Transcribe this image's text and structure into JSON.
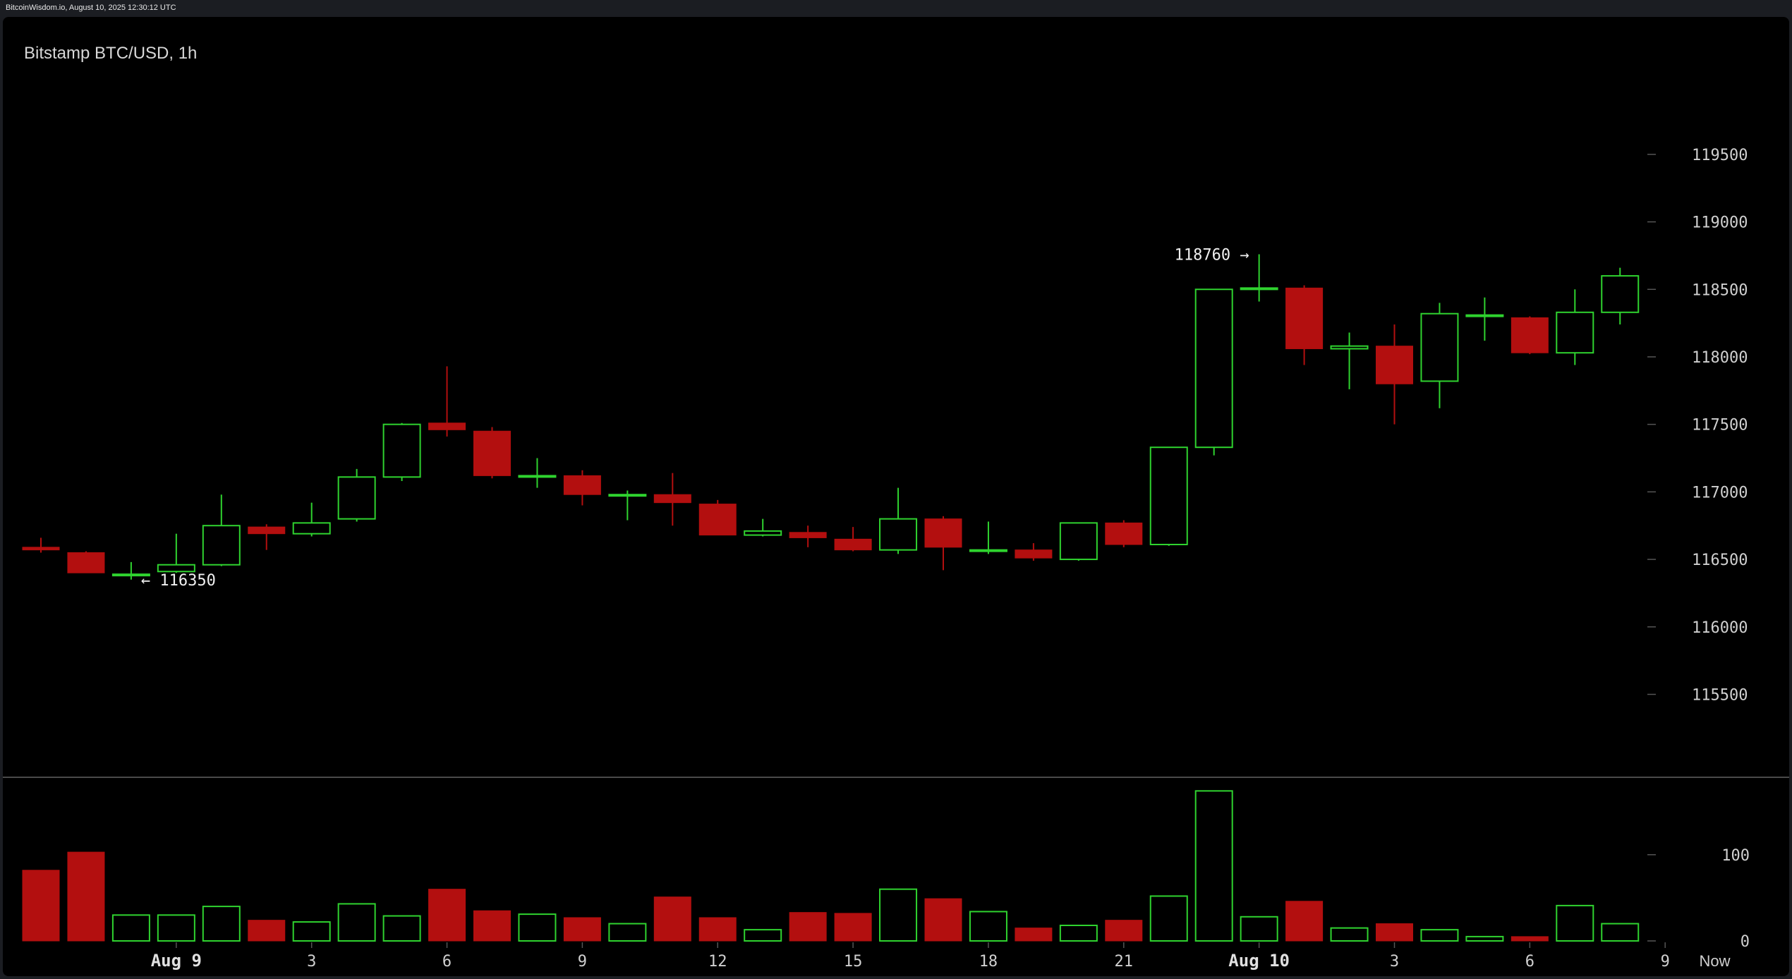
{
  "header": {
    "source_line": "BitcoinWisdom.io, August 10, 2025 12:30:12 UTC"
  },
  "chart_data": {
    "type": "candlestick",
    "title": "Bitstamp BTC/USD, 1h",
    "colors": {
      "up": "#2fd32f",
      "down": "#b30f0f",
      "background": "#000000",
      "text": "#d0d0d0"
    },
    "price_axis": {
      "ticks": [
        115500,
        116000,
        116500,
        117000,
        117500,
        118000,
        118500,
        119000,
        119500
      ],
      "range": [
        114980,
        120100
      ]
    },
    "volume_axis": {
      "ticks": [
        0,
        100
      ],
      "range": [
        0,
        180
      ]
    },
    "time_axis": {
      "labels": [
        {
          "index": 3,
          "text": "Aug 9",
          "bold": true
        },
        {
          "index": 6,
          "text": "3",
          "bold": false
        },
        {
          "index": 9,
          "text": "6",
          "bold": false
        },
        {
          "index": 12,
          "text": "9",
          "bold": false
        },
        {
          "index": 15,
          "text": "12",
          "bold": false
        },
        {
          "index": 18,
          "text": "15",
          "bold": false
        },
        {
          "index": 21,
          "text": "18",
          "bold": false
        },
        {
          "index": 24,
          "text": "21",
          "bold": false
        },
        {
          "index": 27,
          "text": "Aug 10",
          "bold": true
        },
        {
          "index": 30,
          "text": "3",
          "bold": false
        },
        {
          "index": 33,
          "text": "6",
          "bold": false
        },
        {
          "index": 36,
          "text": "9",
          "bold": false
        },
        {
          "index": 37.1,
          "text": "Now",
          "bold": false
        }
      ]
    },
    "annotations": [
      {
        "index": 27,
        "price": 118760,
        "text": "118760 →",
        "side": "left"
      },
      {
        "index": 2,
        "price": 116350,
        "text": "← 116350",
        "side": "right"
      }
    ],
    "candles": [
      {
        "o": 116590,
        "h": 116660,
        "l": 116550,
        "c": 116570,
        "v": 82
      },
      {
        "o": 116550,
        "h": 116560,
        "l": 116400,
        "c": 116400,
        "v": 103
      },
      {
        "o": 116390,
        "h": 116480,
        "l": 116350,
        "c": 116390,
        "v": 30
      },
      {
        "o": 116410,
        "h": 116690,
        "l": 116400,
        "c": 116460,
        "v": 30
      },
      {
        "o": 116460,
        "h": 116980,
        "l": 116450,
        "c": 116750,
        "v": 40
      },
      {
        "o": 116740,
        "h": 116760,
        "l": 116570,
        "c": 116690,
        "v": 24
      },
      {
        "o": 116690,
        "h": 116920,
        "l": 116670,
        "c": 116770,
        "v": 22
      },
      {
        "o": 116800,
        "h": 117170,
        "l": 116780,
        "c": 117110,
        "v": 43
      },
      {
        "o": 117110,
        "h": 117510,
        "l": 117080,
        "c": 117500,
        "v": 29
      },
      {
        "o": 117510,
        "h": 117930,
        "l": 117410,
        "c": 117460,
        "v": 60
      },
      {
        "o": 117450,
        "h": 117480,
        "l": 117100,
        "c": 117120,
        "v": 35
      },
      {
        "o": 117120,
        "h": 117250,
        "l": 117030,
        "c": 117120,
        "v": 31
      },
      {
        "o": 117120,
        "h": 117160,
        "l": 116900,
        "c": 116980,
        "v": 27
      },
      {
        "o": 116980,
        "h": 117010,
        "l": 116790,
        "c": 116980,
        "v": 20
      },
      {
        "o": 116980,
        "h": 117140,
        "l": 116750,
        "c": 116920,
        "v": 51
      },
      {
        "o": 116910,
        "h": 116940,
        "l": 116680,
        "c": 116680,
        "v": 27
      },
      {
        "o": 116680,
        "h": 116800,
        "l": 116670,
        "c": 116710,
        "v": 13
      },
      {
        "o": 116700,
        "h": 116750,
        "l": 116590,
        "c": 116660,
        "v": 33
      },
      {
        "o": 116650,
        "h": 116740,
        "l": 116560,
        "c": 116570,
        "v": 32
      },
      {
        "o": 116570,
        "h": 117030,
        "l": 116540,
        "c": 116800,
        "v": 60
      },
      {
        "o": 116800,
        "h": 116820,
        "l": 116420,
        "c": 116590,
        "v": 49
      },
      {
        "o": 116560,
        "h": 116780,
        "l": 116540,
        "c": 116570,
        "v": 34
      },
      {
        "o": 116570,
        "h": 116620,
        "l": 116490,
        "c": 116510,
        "v": 15
      },
      {
        "o": 116500,
        "h": 116770,
        "l": 116490,
        "c": 116770,
        "v": 18
      },
      {
        "o": 116770,
        "h": 116790,
        "l": 116590,
        "c": 116610,
        "v": 24
      },
      {
        "o": 116610,
        "h": 117330,
        "l": 116600,
        "c": 117330,
        "v": 52
      },
      {
        "o": 117330,
        "h": 118500,
        "l": 117270,
        "c": 118500,
        "v": 174
      },
      {
        "o": 118510,
        "h": 118760,
        "l": 118410,
        "c": 118510,
        "v": 28
      },
      {
        "o": 118510,
        "h": 118530,
        "l": 117940,
        "c": 118060,
        "v": 46
      },
      {
        "o": 118060,
        "h": 118180,
        "l": 117760,
        "c": 118080,
        "v": 15
      },
      {
        "o": 118080,
        "h": 118240,
        "l": 117500,
        "c": 117800,
        "v": 20
      },
      {
        "o": 117820,
        "h": 118400,
        "l": 117620,
        "c": 118320,
        "v": 13
      },
      {
        "o": 118310,
        "h": 118440,
        "l": 118120,
        "c": 118310,
        "v": 5
      },
      {
        "o": 118290,
        "h": 118300,
        "l": 118020,
        "c": 118030,
        "v": 5
      },
      {
        "o": 118030,
        "h": 118500,
        "l": 117940,
        "c": 118330,
        "v": 41
      },
      {
        "o": 118330,
        "h": 118660,
        "l": 118240,
        "c": 118600,
        "v": 20
      }
    ]
  }
}
